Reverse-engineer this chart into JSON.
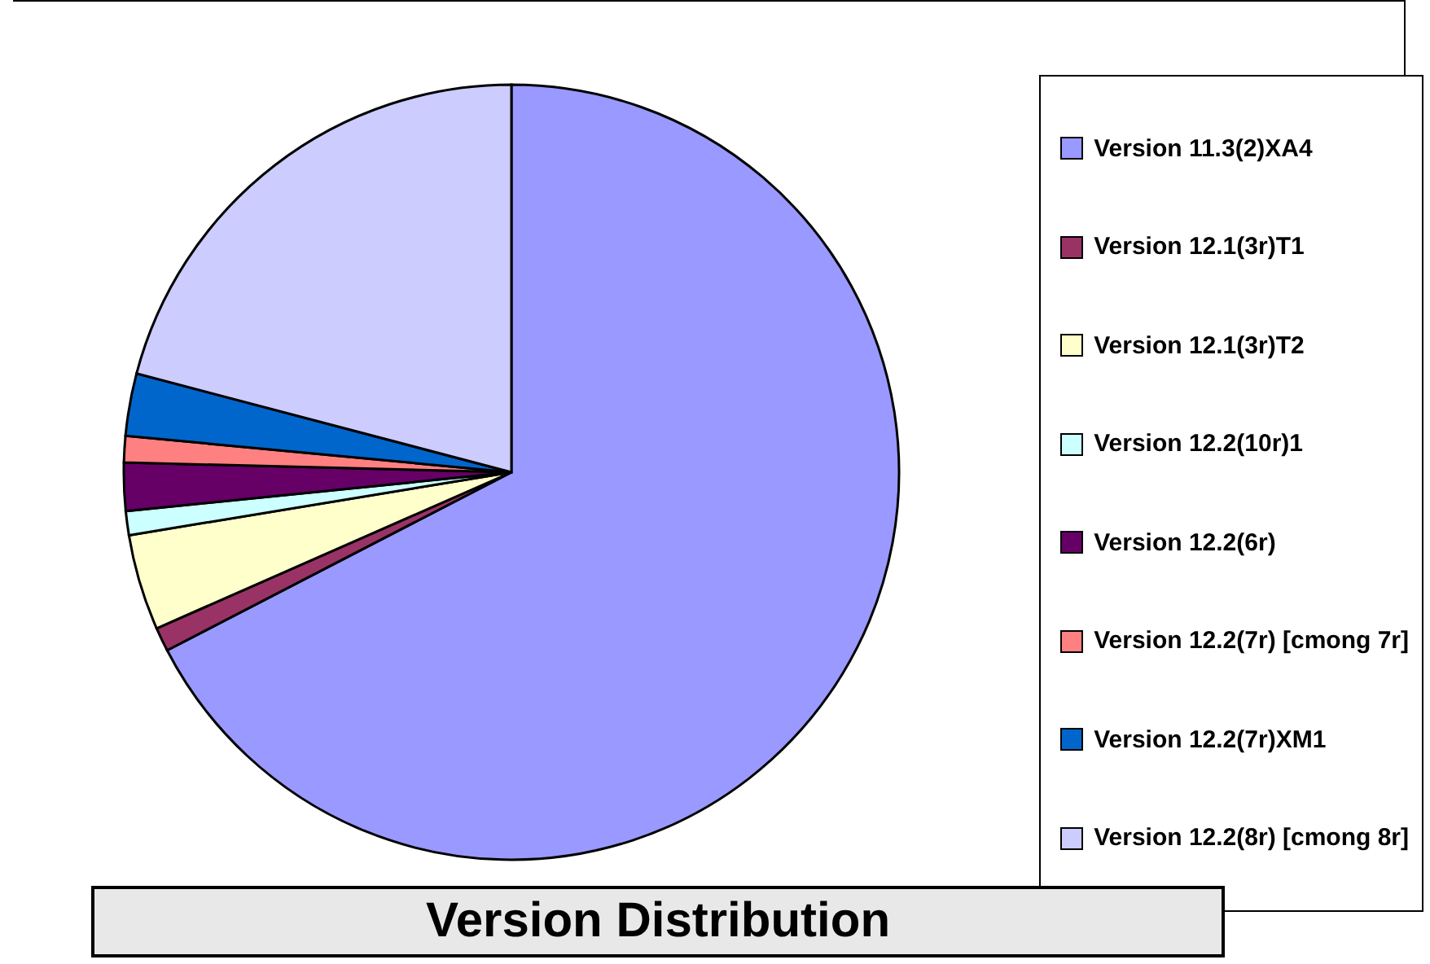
{
  "chart_data": {
    "type": "pie",
    "title": "Version Distribution",
    "categories": [
      "Version 11.3(2)XA4",
      "Version 12.1(3r)T1",
      "Version 12.1(3r)T2",
      "Version 12.2(10r)1",
      "Version 12.2(6r)",
      "Version 12.2(7r) [cmong 7r]",
      "Version 12.2(7r)XM1",
      "Version 12.2(8r) [cmong 8r]"
    ],
    "values": [
      67.4,
      1,
      4,
      1,
      2,
      1.1,
      2.6,
      20.9
    ],
    "colors": [
      "#9999ff",
      "#993366",
      "#ffffcc",
      "#ccffff",
      "#660066",
      "#ff8080",
      "#0066cc",
      "#ccccff"
    ],
    "legend": "right"
  }
}
